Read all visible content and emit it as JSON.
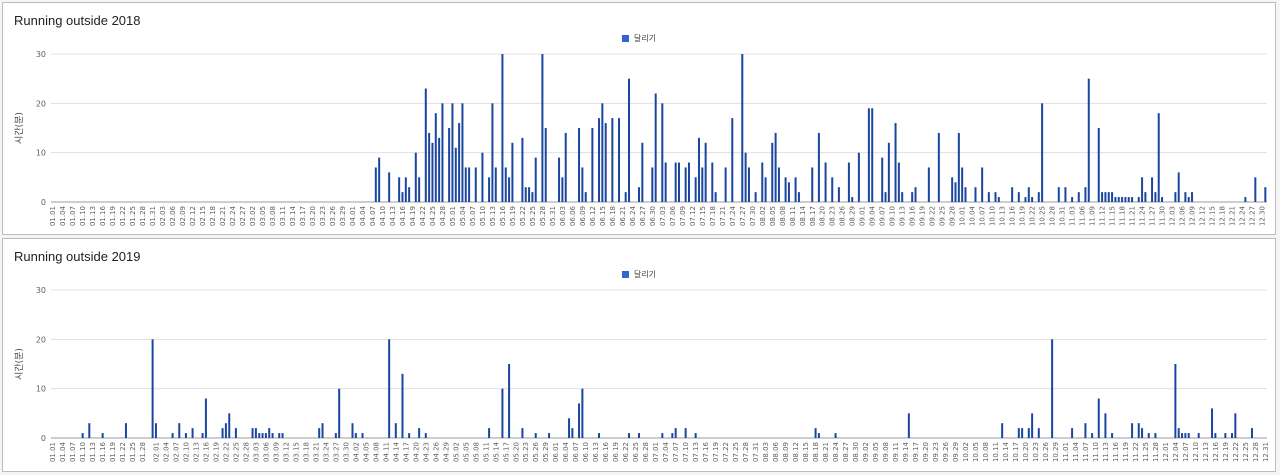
{
  "charts": [
    {
      "title": "Running outside 2018",
      "legend": "달리기"
    },
    {
      "title": "Running outside 2019",
      "legend": "달리기"
    }
  ],
  "colors": {
    "series": "#1a46a0",
    "legend_swatch": "#3366cc",
    "grid": "#e0e0e0",
    "axis_text": "#616161"
  },
  "chart_data": [
    {
      "type": "bar",
      "title": "Running outside 2018",
      "ylabel": "시간(분)",
      "ylim": [
        0,
        30
      ],
      "yticks": [
        0,
        10,
        20,
        30
      ],
      "legend_position": "top-center",
      "grid": true,
      "series": [
        {
          "name": "달리기",
          "points": [
            [
              "04.08",
              7
            ],
            [
              "04.09",
              9
            ],
            [
              "04.12",
              6
            ],
            [
              "04.15",
              5
            ],
            [
              "04.16",
              2
            ],
            [
              "04.17",
              5
            ],
            [
              "04.18",
              3
            ],
            [
              "04.20",
              10
            ],
            [
              "04.21",
              5
            ],
            [
              "04.23",
              23
            ],
            [
              "04.24",
              14
            ],
            [
              "04.25",
              12
            ],
            [
              "04.26",
              18
            ],
            [
              "04.27",
              13
            ],
            [
              "04.28",
              20
            ],
            [
              "04.30",
              15
            ],
            [
              "05.01",
              20
            ],
            [
              "05.02",
              11
            ],
            [
              "05.03",
              16
            ],
            [
              "05.04",
              20
            ],
            [
              "05.05",
              7
            ],
            [
              "05.06",
              7
            ],
            [
              "05.08",
              7
            ],
            [
              "05.10",
              10
            ],
            [
              "05.12",
              5
            ],
            [
              "05.13",
              20
            ],
            [
              "05.14",
              7
            ],
            [
              "05.16",
              30
            ],
            [
              "05.17",
              7
            ],
            [
              "05.18",
              5
            ],
            [
              "05.19",
              12
            ],
            [
              "05.22",
              13
            ],
            [
              "05.23",
              3
            ],
            [
              "05.24",
              3
            ],
            [
              "05.25",
              2
            ],
            [
              "05.26",
              9
            ],
            [
              "05.28",
              30
            ],
            [
              "05.29",
              15
            ],
            [
              "06.02",
              9
            ],
            [
              "06.03",
              5
            ],
            [
              "06.04",
              14
            ],
            [
              "06.08",
              15
            ],
            [
              "06.09",
              7
            ],
            [
              "06.10",
              2
            ],
            [
              "06.12",
              15
            ],
            [
              "06.14",
              17
            ],
            [
              "06.15",
              20
            ],
            [
              "06.16",
              16
            ],
            [
              "06.18",
              17
            ],
            [
              "06.20",
              17
            ],
            [
              "06.22",
              2
            ],
            [
              "06.23",
              25
            ],
            [
              "06.26",
              3
            ],
            [
              "06.27",
              12
            ],
            [
              "06.30",
              7
            ],
            [
              "07.01",
              22
            ],
            [
              "07.03",
              20
            ],
            [
              "07.04",
              8
            ],
            [
              "07.07",
              8
            ],
            [
              "07.08",
              8
            ],
            [
              "07.10",
              7
            ],
            [
              "07.11",
              8
            ],
            [
              "07.13",
              5
            ],
            [
              "07.14",
              13
            ],
            [
              "07.15",
              7
            ],
            [
              "07.16",
              12
            ],
            [
              "07.18",
              8
            ],
            [
              "07.19",
              2
            ],
            [
              "07.22",
              7
            ],
            [
              "07.24",
              17
            ],
            [
              "07.27",
              30
            ],
            [
              "07.28",
              10
            ],
            [
              "07.29",
              7
            ],
            [
              "07.31",
              2
            ],
            [
              "08.02",
              8
            ],
            [
              "08.03",
              5
            ],
            [
              "08.05",
              12
            ],
            [
              "08.06",
              14
            ],
            [
              "08.07",
              7
            ],
            [
              "08.09",
              5
            ],
            [
              "08.10",
              4
            ],
            [
              "08.12",
              5
            ],
            [
              "08.13",
              2
            ],
            [
              "08.17",
              7
            ],
            [
              "08.19",
              14
            ],
            [
              "08.21",
              8
            ],
            [
              "08.23",
              5
            ],
            [
              "08.25",
              3
            ],
            [
              "08.28",
              8
            ],
            [
              "08.29",
              1
            ],
            [
              "08.31",
              10
            ],
            [
              "09.03",
              19
            ],
            [
              "09.04",
              19
            ],
            [
              "09.07",
              9
            ],
            [
              "09.08",
              2
            ],
            [
              "09.09",
              12
            ],
            [
              "09.11",
              16
            ],
            [
              "09.12",
              8
            ],
            [
              "09.13",
              2
            ],
            [
              "09.16",
              2
            ],
            [
              "09.17",
              3
            ],
            [
              "09.21",
              7
            ],
            [
              "09.24",
              14
            ],
            [
              "09.28",
              5
            ],
            [
              "09.29",
              4
            ],
            [
              "09.30",
              14
            ],
            [
              "10.01",
              7
            ],
            [
              "10.02",
              3
            ],
            [
              "10.05",
              3
            ],
            [
              "10.07",
              7
            ],
            [
              "10.09",
              2
            ],
            [
              "10.11",
              2
            ],
            [
              "10.12",
              1
            ],
            [
              "10.16",
              3
            ],
            [
              "10.18",
              2
            ],
            [
              "10.20",
              1
            ],
            [
              "10.21",
              3
            ],
            [
              "10.22",
              1
            ],
            [
              "10.24",
              2
            ],
            [
              "10.25",
              20
            ],
            [
              "10.30",
              3
            ],
            [
              "11.01",
              3
            ],
            [
              "11.03",
              1
            ],
            [
              "11.05",
              2
            ],
            [
              "11.07",
              3
            ],
            [
              "11.08",
              25
            ],
            [
              "11.11",
              15
            ],
            [
              "11.12",
              2
            ],
            [
              "11.13",
              2
            ],
            [
              "11.14",
              2
            ],
            [
              "11.15",
              2
            ],
            [
              "11.16",
              1
            ],
            [
              "11.17",
              1
            ],
            [
              "11.18",
              1
            ],
            [
              "11.19",
              1
            ],
            [
              "11.20",
              1
            ],
            [
              "11.21",
              1
            ],
            [
              "11.23",
              1
            ],
            [
              "11.24",
              5
            ],
            [
              "11.25",
              2
            ],
            [
              "11.27",
              5
            ],
            [
              "11.28",
              2
            ],
            [
              "11.29",
              18
            ],
            [
              "11.30",
              1
            ],
            [
              "12.04",
              2
            ],
            [
              "12.05",
              6
            ],
            [
              "12.07",
              2
            ],
            [
              "12.08",
              1
            ],
            [
              "12.09",
              2
            ],
            [
              "12.25",
              1
            ],
            [
              "12.28",
              5
            ],
            [
              "12.31",
              3
            ]
          ]
        }
      ]
    },
    {
      "type": "bar",
      "title": "Running outside 2019",
      "ylabel": "시간(분)",
      "ylim": [
        0,
        30
      ],
      "yticks": [
        0,
        10,
        20,
        30
      ],
      "legend_position": "top-center",
      "grid": true,
      "series": [
        {
          "name": "달리기",
          "points": [
            [
              "01.10",
              1
            ],
            [
              "01.12",
              3
            ],
            [
              "01.16",
              1
            ],
            [
              "01.23",
              3
            ],
            [
              "01.31",
              20
            ],
            [
              "02.01",
              3
            ],
            [
              "02.06",
              1
            ],
            [
              "02.08",
              3
            ],
            [
              "02.10",
              1
            ],
            [
              "02.12",
              2
            ],
            [
              "02.15",
              1
            ],
            [
              "02.16",
              8
            ],
            [
              "02.21",
              2
            ],
            [
              "02.22",
              3
            ],
            [
              "02.23",
              5
            ],
            [
              "02.25",
              2
            ],
            [
              "03.02",
              2
            ],
            [
              "03.03",
              2
            ],
            [
              "03.04",
              1
            ],
            [
              "03.05",
              1
            ],
            [
              "03.06",
              1
            ],
            [
              "03.07",
              2
            ],
            [
              "03.08",
              1
            ],
            [
              "03.10",
              1
            ],
            [
              "03.11",
              1
            ],
            [
              "03.22",
              2
            ],
            [
              "03.23",
              3
            ],
            [
              "03.27",
              1
            ],
            [
              "03.28",
              10
            ],
            [
              "04.01",
              3
            ],
            [
              "04.02",
              1
            ],
            [
              "04.04",
              1
            ],
            [
              "04.12",
              20
            ],
            [
              "04.14",
              3
            ],
            [
              "04.16",
              13
            ],
            [
              "04.18",
              1
            ],
            [
              "04.21",
              2
            ],
            [
              "04.23",
              1
            ],
            [
              "05.12",
              2
            ],
            [
              "05.16",
              10
            ],
            [
              "05.18",
              15
            ],
            [
              "05.22",
              2
            ],
            [
              "05.26",
              1
            ],
            [
              "05.30",
              1
            ],
            [
              "06.05",
              4
            ],
            [
              "06.06",
              2
            ],
            [
              "06.08",
              7
            ],
            [
              "06.09",
              10
            ],
            [
              "06.14",
              1
            ],
            [
              "06.23",
              1
            ],
            [
              "06.26",
              1
            ],
            [
              "07.03",
              1
            ],
            [
              "07.06",
              1
            ],
            [
              "07.07",
              2
            ],
            [
              "07.10",
              2
            ],
            [
              "07.13",
              1
            ],
            [
              "08.18",
              2
            ],
            [
              "08.19",
              1
            ],
            [
              "08.24",
              1
            ],
            [
              "09.15",
              5
            ],
            [
              "10.13",
              3
            ],
            [
              "10.18",
              2
            ],
            [
              "10.19",
              2
            ],
            [
              "10.21",
              2
            ],
            [
              "10.22",
              5
            ],
            [
              "10.24",
              2
            ],
            [
              "10.28",
              20
            ],
            [
              "11.03",
              2
            ],
            [
              "11.07",
              3
            ],
            [
              "11.09",
              1
            ],
            [
              "11.11",
              8
            ],
            [
              "11.13",
              5
            ],
            [
              "11.15",
              1
            ],
            [
              "11.21",
              3
            ],
            [
              "11.23",
              3
            ],
            [
              "11.24",
              2
            ],
            [
              "11.26",
              1
            ],
            [
              "11.28",
              1
            ],
            [
              "12.04",
              15
            ],
            [
              "12.05",
              2
            ],
            [
              "12.06",
              1
            ],
            [
              "12.07",
              1
            ],
            [
              "12.08",
              1
            ],
            [
              "12.11",
              1
            ],
            [
              "12.15",
              6
            ],
            [
              "12.16",
              1
            ],
            [
              "12.19",
              1
            ],
            [
              "12.21",
              1
            ],
            [
              "12.22",
              5
            ],
            [
              "12.27",
              2
            ]
          ]
        }
      ]
    }
  ]
}
